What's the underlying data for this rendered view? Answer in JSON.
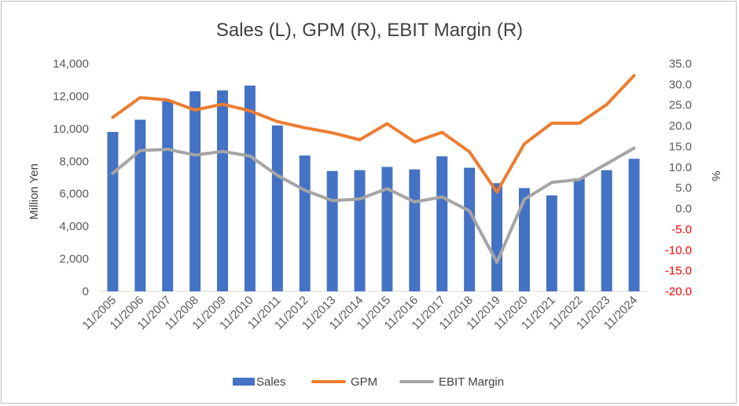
{
  "chart_data": {
    "type": "bar+line",
    "title": "Sales (L), GPM (R), EBIT Margin (R)",
    "categories": [
      "11/2005",
      "11/2006",
      "11/2007",
      "11/2008",
      "11/2009",
      "11/2010",
      "11/2011",
      "11/2012",
      "11/2013",
      "11/2014",
      "11/2015",
      "11/2016",
      "11/2017",
      "11/2018",
      "11/2019",
      "11/2020",
      "11/2021",
      "11/2022",
      "11/2023",
      "11/2024"
    ],
    "ylabel_left": "Million Yen",
    "ylabel_right": "%",
    "ylim_left": [
      0,
      14000
    ],
    "ylim_right": [
      -20,
      35
    ],
    "left_ticks": [
      "0",
      "2,000",
      "4,000",
      "6,000",
      "8,000",
      "10,000",
      "12,000",
      "14,000"
    ],
    "right_ticks": [
      "-20.0",
      "-15.0",
      "-10.0",
      "-5.0",
      "0.0",
      "5.0",
      "10.0",
      "15.0",
      "20.0",
      "25.0",
      "30.0",
      "35.0"
    ],
    "legend_position": "bottom",
    "grid": false,
    "series": [
      {
        "name": "Sales",
        "type": "bar",
        "axis": "left",
        "color": "#4472C4",
        "values": [
          9800,
          10550,
          11700,
          12300,
          12350,
          12650,
          10200,
          8350,
          7400,
          7450,
          7650,
          7500,
          8300,
          7600,
          6650,
          6350,
          5900,
          6950,
          7450,
          8150
        ]
      },
      {
        "name": "GPM",
        "type": "line",
        "axis": "right",
        "color": "#ED7D31",
        "values": [
          22.0,
          26.8,
          26.2,
          23.8,
          25.2,
          23.6,
          21.0,
          19.5,
          18.3,
          16.6,
          20.5,
          16.1,
          18.4,
          13.7,
          4.0,
          15.6,
          20.6,
          20.6,
          25.1,
          32.1
        ]
      },
      {
        "name": "EBIT Margin",
        "type": "line",
        "axis": "right",
        "color": "#A5A5A5",
        "values": [
          8.5,
          14.0,
          14.3,
          12.9,
          13.8,
          12.7,
          8.0,
          4.4,
          1.9,
          2.3,
          4.8,
          1.6,
          2.8,
          -0.6,
          -13.0,
          2.2,
          6.3,
          7.0,
          10.8,
          14.6
        ]
      }
    ],
    "right_negative_tick_color": "#FF0000"
  }
}
